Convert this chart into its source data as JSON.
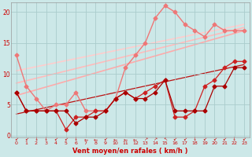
{
  "background_color": "#cce8e8",
  "grid_color": "#aacccc",
  "xlabel": "Vent moyen/en rafales ( km/h )",
  "xlabel_color": "#cc0000",
  "tick_color": "#cc0000",
  "x_ticks": [
    0,
    1,
    2,
    3,
    4,
    5,
    6,
    7,
    8,
    9,
    10,
    11,
    12,
    13,
    14,
    15,
    16,
    17,
    18,
    19,
    20,
    21,
    22,
    23
  ],
  "ylim": [
    -0.3,
    21.5
  ],
  "xlim": [
    -0.5,
    23.5
  ],
  "yticks": [
    0,
    5,
    10,
    15,
    20
  ],
  "line_dark1": {
    "x": [
      0,
      1,
      2,
      3,
      4,
      5,
      6,
      7,
      8,
      9,
      10,
      11,
      12,
      13,
      14,
      15,
      16,
      17,
      18,
      19,
      20,
      21,
      22,
      23
    ],
    "y": [
      7,
      4,
      4,
      4,
      4,
      4,
      2,
      3,
      3,
      4,
      6,
      7,
      6,
      6,
      7,
      9,
      4,
      4,
      4,
      4,
      8,
      8,
      11,
      11
    ],
    "color": "#aa0000",
    "lw": 0.9,
    "marker": "D",
    "ms": 2.5
  },
  "line_dark2": {
    "x": [
      0,
      1,
      2,
      3,
      4,
      5,
      6,
      7,
      8,
      9,
      10,
      11,
      12,
      13,
      14,
      15,
      16,
      17,
      18,
      19,
      20,
      21,
      22,
      23
    ],
    "y": [
      7,
      4,
      4,
      4,
      4,
      1,
      3,
      3,
      4,
      4,
      6,
      7,
      6,
      7,
      8,
      9,
      3,
      3,
      4,
      8,
      9,
      11,
      12,
      12
    ],
    "color": "#cc2222",
    "lw": 0.9,
    "marker": "D",
    "ms": 2.5
  },
  "line_trend_dark": {
    "x": [
      0,
      23
    ],
    "y": [
      3.5,
      11.5
    ],
    "color": "#bb1111",
    "lw": 0.9
  },
  "line_medium": {
    "x": [
      0,
      1,
      2,
      3,
      4,
      5,
      6,
      7,
      8,
      9,
      10,
      11,
      12,
      13,
      14,
      15,
      16,
      17,
      18,
      19,
      20,
      21,
      22,
      23
    ],
    "y": [
      13,
      8,
      6,
      4,
      5,
      5,
      7,
      4,
      4,
      4,
      6,
      11,
      13,
      15,
      19,
      21,
      20,
      18,
      17,
      16,
      18,
      17,
      17,
      17
    ],
    "color": "#ee7777",
    "lw": 1.0,
    "marker": "D",
    "ms": 2.5
  },
  "line_trend1": {
    "x": [
      0,
      23
    ],
    "y": [
      6.5,
      17.0
    ],
    "color": "#ffaaaa",
    "lw": 1.2
  },
  "line_trend2": {
    "x": [
      0,
      23
    ],
    "y": [
      8.5,
      17.5
    ],
    "color": "#ffbbbb",
    "lw": 1.2
  },
  "line_trend3": {
    "x": [
      0,
      23
    ],
    "y": [
      10.5,
      18.0
    ],
    "color": "#ffcccc",
    "lw": 1.2
  },
  "arrow_symbols": [
    "↙",
    "↙",
    "↓",
    "↓",
    "↙",
    "↙",
    "↓",
    "←",
    "←",
    "↙",
    "←",
    "←",
    "←",
    "↗",
    "↗",
    "↖",
    "↙",
    "↙",
    "↓",
    "↙",
    "↙",
    "↙",
    "↓",
    "↙"
  ],
  "arrow_color": "#cc0000"
}
